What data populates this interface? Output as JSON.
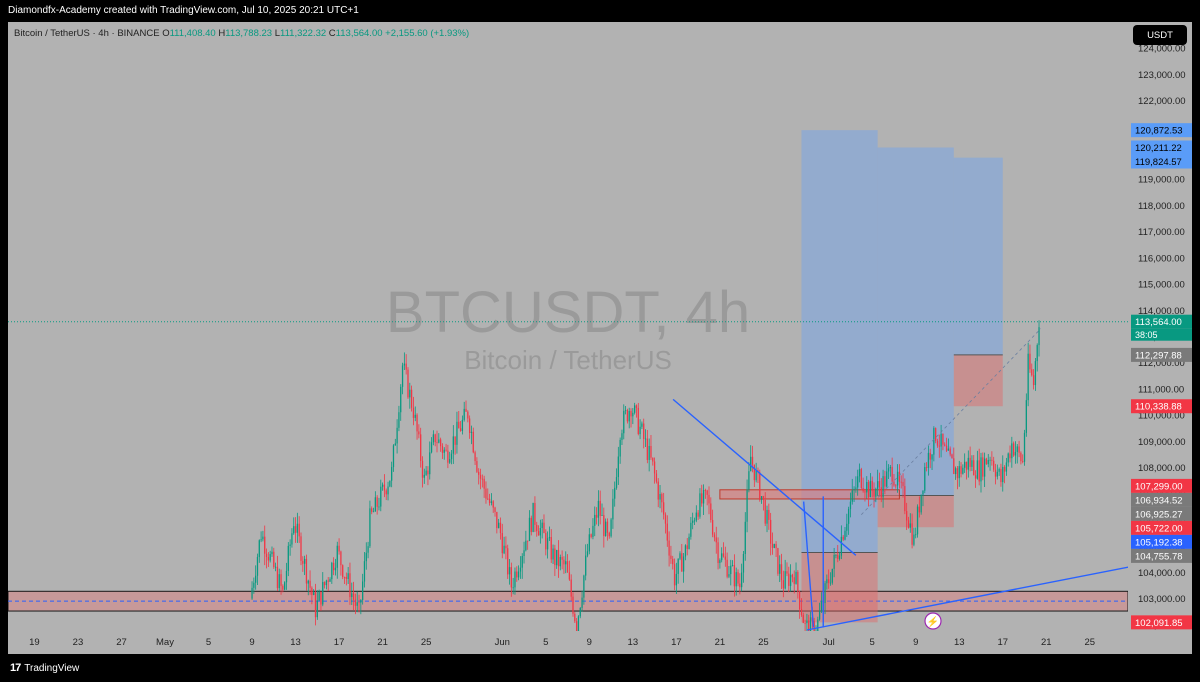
{
  "header": {
    "caption": "Diamondfx-Academy created with TradingView.com, Jul 10, 2025 20:21 UTC+1"
  },
  "symbol": {
    "name": "Bitcoin / TetherUS · 4h · BINANCE",
    "open_label": "O",
    "open": "111,408.40",
    "high_label": "H",
    "high": "113,788.23",
    "low_label": "L",
    "low": "111,322.32",
    "close_label": "C",
    "close": "113,564.00",
    "change": "+2,155.60 (+1.93%)"
  },
  "currency_button": "USDT",
  "footer": {
    "brand": "TradingView",
    "logo": "17"
  },
  "colors": {
    "background": "#b2b2b2",
    "bull": "#089981",
    "bear": "#f23645",
    "projection_blue": "#7aa6e6",
    "stop_red": "#e06666",
    "trendline": "#2962ff"
  },
  "chart_data": {
    "type": "candlestick",
    "title": "BTCUSDT, 4h",
    "subtitle": "Bitcoin / TetherUS",
    "timeframe": "4h",
    "ylim": [
      101800,
      125000
    ],
    "y_ticks": [
      "102,000.00",
      "103,000.00",
      "104,000.00",
      "105,000.00",
      "106,000.00",
      "107,000.00",
      "108,000.00",
      "109,000.00",
      "110,000.00",
      "111,000.00",
      "112,000.00",
      "113,000.00",
      "114,000.00",
      "115,000.00",
      "116,000.00",
      "117,000.00",
      "118,000.00",
      "119,000.00",
      "120,000.00",
      "121,000.00",
      "122,000.00",
      "123,000.00",
      "124,000.00"
    ],
    "x_ticks": [
      "19",
      "23",
      "27",
      "May",
      "5",
      "9",
      "13",
      "17",
      "21",
      "25",
      "Jun",
      "5",
      "9",
      "13",
      "17",
      "21",
      "25",
      "Jul",
      "5",
      "9",
      "13",
      "17",
      "21",
      "25"
    ],
    "x_tick_days": [
      -12,
      -8,
      -4,
      0,
      4,
      8,
      12,
      16,
      20,
      24,
      31,
      35,
      39,
      43,
      47,
      51,
      55,
      61,
      65,
      69,
      73,
      77,
      81,
      85
    ],
    "price_path": [
      {
        "day": 8,
        "price": 103000
      },
      {
        "day": 9,
        "price": 105500
      },
      {
        "day": 11,
        "price": 103200
      },
      {
        "day": 12,
        "price": 106000
      },
      {
        "day": 14,
        "price": 102600
      },
      {
        "day": 16,
        "price": 104800
      },
      {
        "day": 18,
        "price": 102400
      },
      {
        "day": 19,
        "price": 106000
      },
      {
        "day": 21,
        "price": 107800
      },
      {
        "day": 22,
        "price": 111900
      },
      {
        "day": 23,
        "price": 110200
      },
      {
        "day": 24,
        "price": 107500
      },
      {
        "day": 25,
        "price": 109200
      },
      {
        "day": 26,
        "price": 108500
      },
      {
        "day": 28,
        "price": 110100
      },
      {
        "day": 29,
        "price": 107800
      },
      {
        "day": 31,
        "price": 105500
      },
      {
        "day": 32,
        "price": 103500
      },
      {
        "day": 34,
        "price": 106200
      },
      {
        "day": 36,
        "price": 104500
      },
      {
        "day": 37,
        "price": 104200
      },
      {
        "day": 38,
        "price": 102000
      },
      {
        "day": 39,
        "price": 104800
      },
      {
        "day": 40,
        "price": 106500
      },
      {
        "day": 41,
        "price": 105000
      },
      {
        "day": 42,
        "price": 109500
      },
      {
        "day": 43,
        "price": 110400
      },
      {
        "day": 44,
        "price": 109300
      },
      {
        "day": 45,
        "price": 108000
      },
      {
        "day": 46,
        "price": 106200
      },
      {
        "day": 47,
        "price": 103800
      },
      {
        "day": 48,
        "price": 104800
      },
      {
        "day": 49,
        "price": 106500
      },
      {
        "day": 50,
        "price": 106800
      },
      {
        "day": 51,
        "price": 104800
      },
      {
        "day": 53,
        "price": 103500
      },
      {
        "day": 54,
        "price": 108400
      },
      {
        "day": 55,
        "price": 106900
      },
      {
        "day": 56,
        "price": 105000
      },
      {
        "day": 57,
        "price": 103600
      },
      {
        "day": 58,
        "price": 104000
      },
      {
        "day": 59,
        "price": 101900
      },
      {
        "day": 60,
        "price": 101800
      },
      {
        "day": 61,
        "price": 103500
      },
      {
        "day": 62,
        "price": 104800
      },
      {
        "day": 63,
        "price": 106400
      },
      {
        "day": 64,
        "price": 107700
      },
      {
        "day": 65,
        "price": 107100
      },
      {
        "day": 66,
        "price": 107300
      },
      {
        "day": 67,
        "price": 107900
      },
      {
        "day": 68,
        "price": 106900
      },
      {
        "day": 69,
        "price": 105200
      },
      {
        "day": 70,
        "price": 108000
      },
      {
        "day": 71,
        "price": 109300
      },
      {
        "day": 72,
        "price": 108400
      },
      {
        "day": 73,
        "price": 107800
      },
      {
        "day": 74,
        "price": 108200
      },
      {
        "day": 75,
        "price": 107900
      },
      {
        "day": 76,
        "price": 108500
      },
      {
        "day": 77,
        "price": 107500
      },
      {
        "day": 78,
        "price": 108900
      },
      {
        "day": 79,
        "price": 108200
      },
      {
        "day": 79.5,
        "price": 111900
      },
      {
        "day": 80,
        "price": 111200
      },
      {
        "day": 80.5,
        "price": 113700
      }
    ],
    "price_labels": [
      {
        "text": "120,872.53",
        "value": 120872.53,
        "color": "#5a9cf8",
        "text_color": "#000000"
      },
      {
        "text": "120,211.22",
        "value": 120211.22,
        "color": "#5a9cf8",
        "text_color": "#000000"
      },
      {
        "text": "119,824.57",
        "value": 119824.57,
        "color": "#5a9cf8",
        "text_color": "#000000"
      },
      {
        "text": "113,564.00",
        "value": 113564.0,
        "color": "#089981",
        "text_color": "#ffffff"
      },
      {
        "text": "38:05",
        "value": 113564.0,
        "color": "#089981",
        "text_color": "#ffffff",
        "sub": true
      },
      {
        "text": "112,297.88",
        "value": 112297.88,
        "color": "#7a7a7a",
        "text_color": "#ffffff"
      },
      {
        "text": "110,338.88",
        "value": 110338.88,
        "color": "#f23645",
        "text_color": "#ffffff"
      },
      {
        "text": "107,299.00",
        "value": 107299.0,
        "color": "#f23645",
        "text_color": "#ffffff"
      },
      {
        "text": "106,934.52",
        "value": 106934.52,
        "color": "#7a7a7a",
        "text_color": "#ffffff"
      },
      {
        "text": "106,925.27",
        "value": 106925.27,
        "color": "#7a7a7a",
        "text_color": "#ffffff"
      },
      {
        "text": "105,722.00",
        "value": 105722.0,
        "color": "#f23645",
        "text_color": "#ffffff"
      },
      {
        "text": "105,192.38",
        "value": 105192.38,
        "color": "#2962ff",
        "text_color": "#ffffff"
      },
      {
        "text": "104,755.78",
        "value": 104755.78,
        "color": "#7a7a7a",
        "text_color": "#ffffff"
      },
      {
        "text": "102,091.85",
        "value": 102091.85,
        "color": "#f23645",
        "text_color": "#ffffff"
      }
    ],
    "positions": [
      {
        "start_day": 58.5,
        "end_day": 65.5,
        "entry": 104755.78,
        "target": 120872.53,
        "stop": 102091.85
      },
      {
        "start_day": 65.5,
        "end_day": 72.5,
        "entry": 106934.52,
        "target": 120211.22,
        "stop": 105722.0
      },
      {
        "start_day": 72.5,
        "end_day": 77,
        "entry": 112297.88,
        "target": 119824.57,
        "stop": 110338.88
      }
    ],
    "support_zone": {
      "low": 102600,
      "high": 103200
    },
    "resistance_box": {
      "start_day": 51,
      "end_day": 67.5,
      "low": 106800,
      "high": 107150
    },
    "trendlines": [
      {
        "x1": 46.7,
        "y1": 110600,
        "x2": 63.5,
        "y2": 104650,
        "color": "#2962ff"
      },
      {
        "x1": 59,
        "y1": 101800,
        "x2": 91,
        "y2": 104400,
        "color": "#2962ff"
      }
    ],
    "current_price": 113564.0,
    "grid": false
  }
}
